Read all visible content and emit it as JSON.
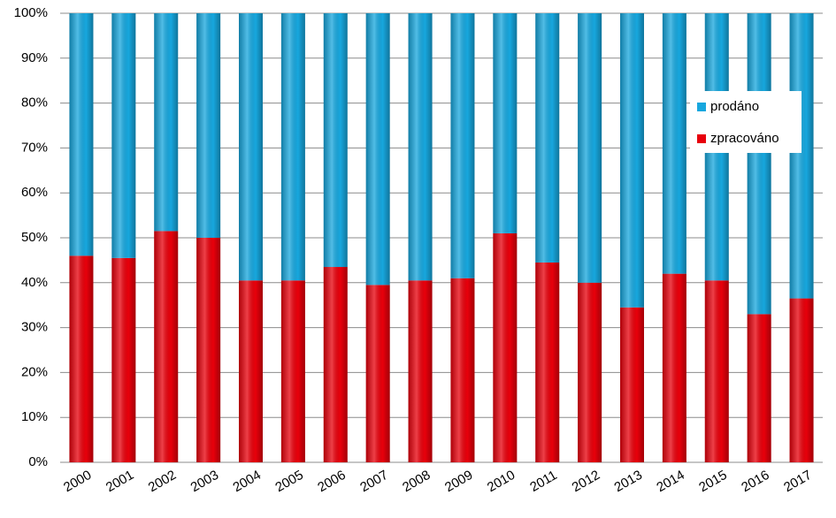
{
  "chart_data": {
    "type": "stacked_bar",
    "categories": [
      "2000",
      "2001",
      "2002",
      "2003",
      "2004",
      "2005",
      "2006",
      "2007",
      "2008",
      "2009",
      "2010",
      "2011",
      "2012",
      "2013",
      "2014",
      "2015",
      "2016",
      "2017"
    ],
    "series": [
      {
        "name": "zpracováno",
        "color": "#e8000b",
        "values": [
          46,
          45.5,
          51.5,
          50,
          40.5,
          40.5,
          43.5,
          39.5,
          40.5,
          41,
          51,
          44.5,
          40,
          34.5,
          42,
          40.5,
          33,
          36.5
        ]
      },
      {
        "name": "prodáno",
        "color": "#17a7de",
        "values": [
          54,
          54.5,
          48.5,
          50,
          59.5,
          59.5,
          56.5,
          60.5,
          59.5,
          59,
          49,
          55.5,
          60,
          65.5,
          58,
          59.5,
          67,
          63.5
        ]
      }
    ],
    "ylim": [
      0,
      100
    ],
    "yticks": [
      {
        "value": 0,
        "label": "0%"
      },
      {
        "value": 10,
        "label": "10%"
      },
      {
        "value": 20,
        "label": "20%"
      },
      {
        "value": 30,
        "label": "30%"
      },
      {
        "value": 40,
        "label": "40%"
      },
      {
        "value": 50,
        "label": "50%"
      },
      {
        "value": 60,
        "label": "60%"
      },
      {
        "value": 70,
        "label": "70%"
      },
      {
        "value": 80,
        "label": "80%"
      },
      {
        "value": 90,
        "label": "90%"
      },
      {
        "value": 100,
        "label": "100%"
      }
    ],
    "grid": true,
    "legend": "right"
  }
}
